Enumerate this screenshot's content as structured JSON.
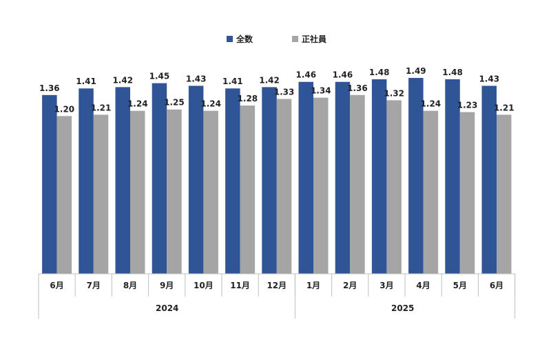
{
  "legend": {
    "all_label": "全数",
    "regular_label": "正社員"
  },
  "colors": {
    "all": "#2F5597",
    "regular": "#A5A5A5"
  },
  "years": {
    "first": "2024",
    "second": "2025"
  },
  "chart_data": {
    "type": "bar",
    "categories": [
      "6月",
      "7月",
      "8月",
      "9月",
      "10月",
      "11月",
      "12月",
      "1月",
      "2月",
      "3月",
      "4月",
      "5月",
      "6月"
    ],
    "category_groups": [
      {
        "label": "2024",
        "count": 7
      },
      {
        "label": "2025",
        "count": 6
      }
    ],
    "series": [
      {
        "name": "全数",
        "values": [
          1.36,
          1.41,
          1.42,
          1.45,
          1.43,
          1.41,
          1.42,
          1.46,
          1.46,
          1.48,
          1.49,
          1.48,
          1.43
        ]
      },
      {
        "name": "正社員",
        "values": [
          1.2,
          1.21,
          1.24,
          1.25,
          1.24,
          1.28,
          1.33,
          1.34,
          1.36,
          1.32,
          1.24,
          1.23,
          1.21
        ]
      }
    ],
    "data_labels": true,
    "grid": false,
    "legend_position": "top"
  }
}
